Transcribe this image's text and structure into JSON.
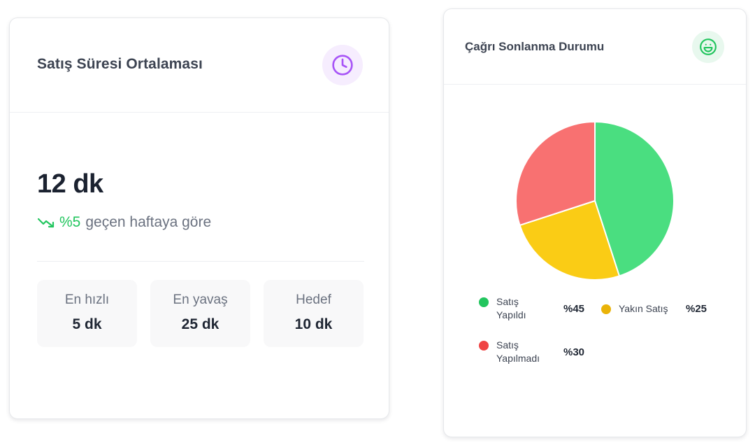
{
  "avg_card": {
    "title": "Satış Süresi Ortalaması",
    "icon": "clock-icon",
    "icon_color": "#a855f7",
    "value": "12 dk",
    "trend_pct": "%5",
    "trend_text": "geçen haftaya göre",
    "trend_color": "#22c55e",
    "stats": [
      {
        "label": "En hızlı",
        "value": "5 dk"
      },
      {
        "label": "En yavaş",
        "value": "25 dk"
      },
      {
        "label": "Hedef",
        "value": "10 dk"
      }
    ]
  },
  "call_card": {
    "title": "Çağrı Sonlanma Durumu",
    "icon": "smile-icon",
    "icon_color": "#22c55e",
    "legend": [
      {
        "label": "Satış Yapıldı",
        "pct": "%45",
        "color": "#22c55e"
      },
      {
        "label": "Yakın Satış",
        "pct": "%25",
        "color": "#eab308"
      },
      {
        "label": "Satış Yapılmadı",
        "pct": "%30",
        "color": "#ef4444"
      }
    ]
  },
  "chart_data": {
    "type": "pie",
    "title": "Çağrı Sonlanma Durumu",
    "categories": [
      "Satış Yapıldı",
      "Yakın Satış",
      "Satış Yapılmadı"
    ],
    "values": [
      45,
      25,
      30
    ],
    "colors": [
      "#4ade80",
      "#facc15",
      "#f87171"
    ]
  }
}
